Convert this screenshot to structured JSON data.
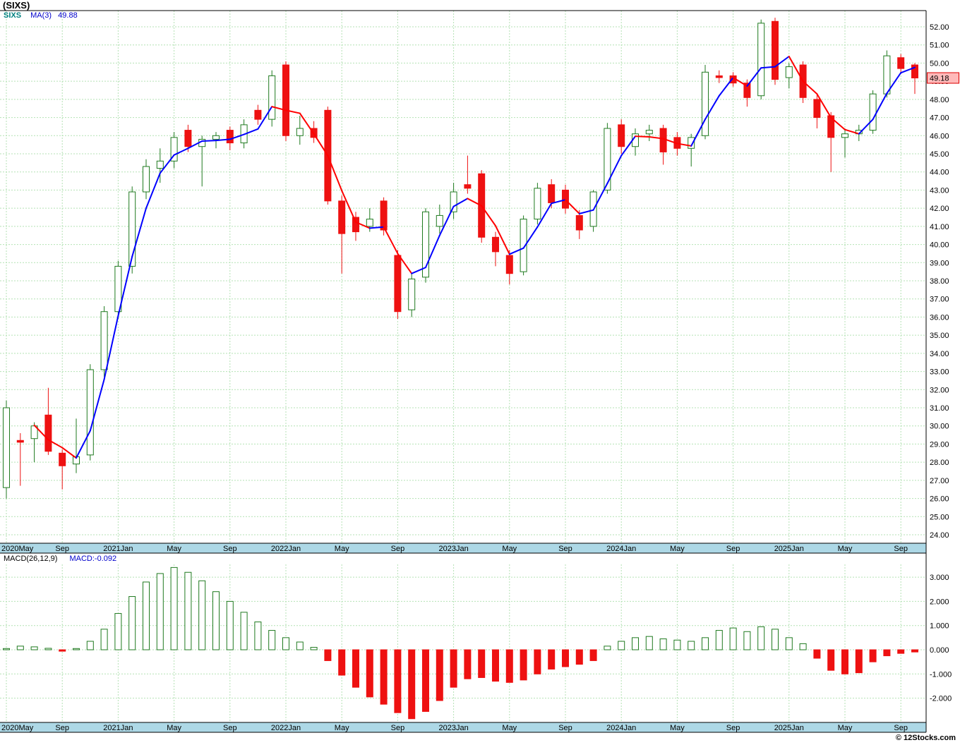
{
  "title": "(SIXS)",
  "legend": {
    "symbol": "SIXS",
    "ma": "MA(3)",
    "ma_value": "49.88"
  },
  "macd_legend": {
    "name": "MACD(26,12,9)",
    "value": "MACD:-0.092"
  },
  "price_label": "49.18",
  "copyright": "© 12Stocks.com",
  "colors": {
    "up": "#ffffff",
    "up_border": "#1f7a1f",
    "down": "#ee1111",
    "ma_up": "#0000ff",
    "ma_down": "#ff0000",
    "grid": "#b4e2b4",
    "axis_bar": "#add8e6",
    "price_label_bg": "#ffbaba",
    "price_label_border": "#dd0000"
  },
  "price_axis": {
    "min": 24,
    "max": 52,
    "step": 1,
    "decimals": 2
  },
  "macd_axis": {
    "min": -2,
    "max": 3,
    "step": 1,
    "decimals": 3
  },
  "x_ticks": [
    {
      "i": 0,
      "label": "2020May"
    },
    {
      "i": 4,
      "label": "Sep"
    },
    {
      "i": 8,
      "label": "2021Jan"
    },
    {
      "i": 12,
      "label": "May"
    },
    {
      "i": 16,
      "label": "Sep"
    },
    {
      "i": 20,
      "label": "2022Jan"
    },
    {
      "i": 24,
      "label": "May"
    },
    {
      "i": 28,
      "label": "Sep"
    },
    {
      "i": 32,
      "label": "2023Jan"
    },
    {
      "i": 36,
      "label": "May"
    },
    {
      "i": 40,
      "label": "Sep"
    },
    {
      "i": 44,
      "label": "2024Jan"
    },
    {
      "i": 48,
      "label": "May"
    },
    {
      "i": 52,
      "label": "Sep"
    },
    {
      "i": 56,
      "label": "2025Jan"
    },
    {
      "i": 60,
      "label": "May"
    },
    {
      "i": 64,
      "label": "Sep"
    }
  ],
  "chart_data": [
    {
      "type": "candlestick",
      "title": "(SIXS) monthly price",
      "legend": [
        "SIXS",
        "MA(3)"
      ],
      "ylim": [
        24,
        52
      ],
      "last_close": 49.18,
      "ma_period": 3,
      "ma_last_value": 49.88,
      "months": [
        "2020-05",
        "2020-06",
        "2020-07",
        "2020-08",
        "2020-09",
        "2020-10",
        "2020-11",
        "2020-12",
        "2021-01",
        "2021-02",
        "2021-03",
        "2021-04",
        "2021-05",
        "2021-06",
        "2021-07",
        "2021-08",
        "2021-09",
        "2021-10",
        "2021-11",
        "2021-12",
        "2022-01",
        "2022-02",
        "2022-03",
        "2022-04",
        "2022-05",
        "2022-06",
        "2022-07",
        "2022-08",
        "2022-09",
        "2022-10",
        "2022-11",
        "2022-12",
        "2023-01",
        "2023-02",
        "2023-03",
        "2023-04",
        "2023-05",
        "2023-06",
        "2023-07",
        "2023-08",
        "2023-09",
        "2023-10",
        "2023-11",
        "2023-12",
        "2024-01",
        "2024-02",
        "2024-03",
        "2024-04",
        "2024-05",
        "2024-06",
        "2024-07",
        "2024-08",
        "2024-09",
        "2024-10",
        "2024-11",
        "2024-12",
        "2025-01",
        "2025-02",
        "2025-03",
        "2025-04",
        "2025-05",
        "2025-06",
        "2025-07",
        "2025-08",
        "2025-09",
        "2025-10"
      ],
      "open": [
        26.6,
        29.2,
        29.3,
        30.6,
        28.5,
        27.9,
        28.4,
        33.1,
        36.3,
        38.8,
        42.9,
        44.2,
        44.6,
        46.3,
        45.4,
        45.8,
        46.3,
        45.6,
        47.4,
        46.9,
        49.9,
        46.0,
        46.4,
        47.4,
        42.4,
        41.5,
        41.0,
        42.4,
        39.4,
        36.4,
        38.2,
        41.0,
        41.8,
        43.3,
        43.9,
        40.4,
        39.4,
        38.5,
        41.4,
        43.3,
        43.0,
        41.6,
        41.0,
        43.0,
        46.6,
        45.4,
        46.1,
        46.4,
        45.9,
        45.3,
        46.0,
        49.3,
        49.3,
        48.9,
        48.2,
        52.3,
        49.2,
        49.9,
        48.0,
        47.1,
        45.9,
        46.1,
        46.3,
        48.3,
        50.3,
        49.9
      ],
      "high": [
        31.4,
        29.6,
        30.2,
        32.1,
        28.7,
        30.4,
        33.4,
        36.6,
        39.1,
        43.2,
        44.7,
        45.3,
        46.2,
        46.6,
        46.0,
        46.2,
        46.5,
        46.9,
        47.7,
        49.6,
        50.1,
        47.1,
        46.8,
        47.6,
        42.7,
        41.8,
        42.0,
        42.6,
        39.7,
        38.4,
        42.0,
        42.2,
        43.4,
        44.9,
        44.1,
        40.7,
        39.7,
        41.6,
        43.4,
        43.6,
        43.3,
        41.9,
        43.0,
        46.7,
        46.9,
        46.4,
        46.6,
        46.6,
        46.2,
        46.1,
        49.9,
        49.6,
        49.5,
        49.1,
        52.4,
        52.5,
        50.0,
        50.1,
        48.3,
        47.3,
        46.4,
        46.6,
        48.5,
        50.7,
        50.5,
        50.0
      ],
      "low": [
        26.0,
        26.7,
        28.0,
        28.4,
        26.5,
        27.4,
        28.1,
        32.7,
        35.9,
        38.4,
        42.5,
        43.4,
        44.2,
        45.1,
        43.2,
        45.3,
        45.2,
        45.3,
        46.6,
        46.5,
        45.7,
        45.5,
        45.6,
        42.2,
        38.4,
        40.2,
        40.7,
        40.5,
        35.9,
        36.0,
        37.9,
        40.6,
        41.4,
        42.8,
        40.1,
        38.8,
        37.8,
        38.3,
        41.1,
        42.0,
        41.7,
        40.3,
        40.7,
        42.8,
        45.0,
        44.9,
        45.7,
        44.4,
        44.9,
        44.3,
        45.8,
        48.9,
        48.7,
        47.6,
        48.0,
        48.8,
        48.6,
        47.8,
        46.4,
        44.0,
        44.8,
        45.7,
        46.1,
        48.1,
        49.4,
        48.3
      ],
      "close": [
        31.0,
        29.1,
        30.0,
        28.6,
        27.8,
        28.3,
        33.1,
        36.3,
        38.8,
        42.9,
        44.3,
        44.6,
        45.9,
        45.4,
        45.8,
        46.0,
        45.6,
        46.6,
        46.9,
        49.3,
        46.0,
        46.4,
        45.9,
        42.4,
        40.6,
        40.7,
        41.4,
        40.8,
        36.3,
        38.1,
        41.8,
        41.6,
        42.9,
        43.1,
        40.4,
        39.6,
        38.4,
        41.4,
        43.1,
        42.3,
        42.0,
        40.8,
        42.9,
        46.4,
        45.4,
        46.1,
        46.3,
        45.1,
        45.3,
        45.9,
        49.5,
        49.2,
        48.9,
        48.1,
        52.2,
        49.1,
        49.8,
        48.1,
        47.0,
        45.9,
        46.1,
        46.3,
        48.3,
        50.4,
        49.7,
        49.18
      ]
    },
    {
      "type": "bar",
      "title": "MACD(26,12,9) histogram",
      "ylim": [
        -2.95,
        3.5
      ],
      "last_value": -0.092,
      "values": [
        0.05,
        0.15,
        0.12,
        0.06,
        -0.06,
        0.05,
        0.35,
        0.85,
        1.5,
        2.2,
        2.8,
        3.15,
        3.4,
        3.2,
        2.85,
        2.4,
        2.0,
        1.55,
        1.15,
        0.8,
        0.5,
        0.32,
        0.1,
        -0.45,
        -1.05,
        -1.55,
        -1.95,
        -2.25,
        -2.6,
        -2.85,
        -2.55,
        -2.1,
        -1.55,
        -1.2,
        -1.15,
        -1.3,
        -1.35,
        -1.25,
        -1.0,
        -0.8,
        -0.7,
        -0.6,
        -0.45,
        0.15,
        0.35,
        0.5,
        0.55,
        0.45,
        0.4,
        0.35,
        0.5,
        0.8,
        0.9,
        0.75,
        0.95,
        0.85,
        0.5,
        0.25,
        -0.35,
        -0.85,
        -1.0,
        -0.95,
        -0.5,
        -0.25,
        -0.15,
        -0.092
      ]
    }
  ]
}
